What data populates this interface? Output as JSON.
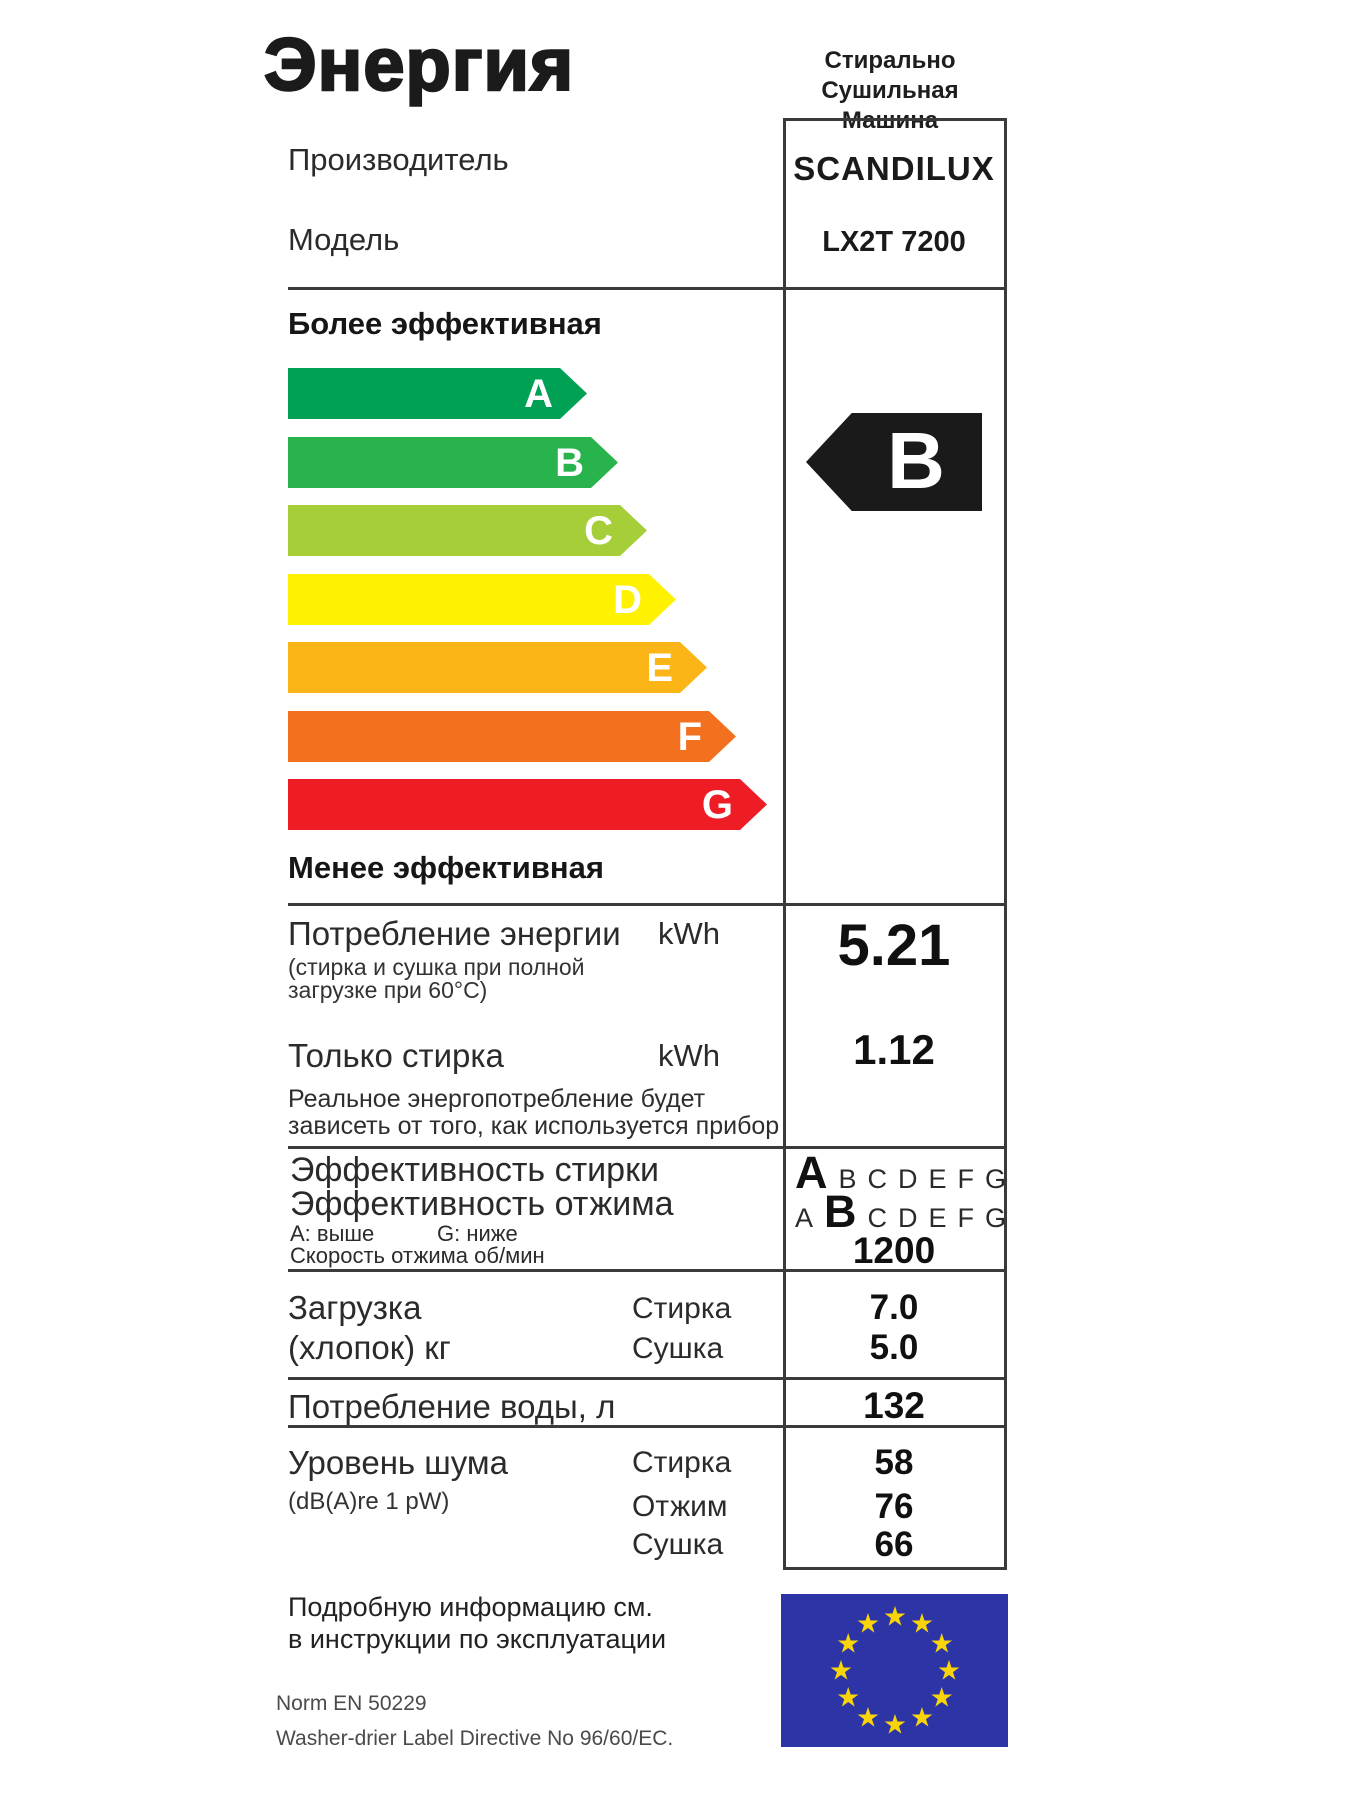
{
  "title": "Энергия",
  "appliance_type": {
    "line1": "Стирально",
    "line2": "Сушильная Машина"
  },
  "manufacturer": {
    "label": "Производитель",
    "value": "SCANDILUX"
  },
  "model": {
    "label": "Модель",
    "value": "LX2T 7200"
  },
  "scale": {
    "more_efficient": "Более эффективная",
    "less_efficient": "Менее эффективная",
    "grades": [
      {
        "letter": "A",
        "color": "#00a155"
      },
      {
        "letter": "B",
        "color": "#28b34d"
      },
      {
        "letter": "C",
        "color": "#a5ce39"
      },
      {
        "letter": "D",
        "color": "#fef200"
      },
      {
        "letter": "E",
        "color": "#fbb516"
      },
      {
        "letter": "F",
        "color": "#f3701e"
      },
      {
        "letter": "G",
        "color": "#ee1c25"
      }
    ]
  },
  "rating": {
    "value": "B",
    "color": "#1a1a1a"
  },
  "energy": {
    "label": "Потребление энергии",
    "unit": "kWh",
    "value": "5.21",
    "note_line1": "(стирка и сушка при полной",
    "note_line2": "загрузке при 60°С)",
    "wash_only_label": "Только стирка",
    "wash_only_unit": "kWh",
    "wash_only_value": "1.12",
    "disclaimer_line1": "Реальное энергопотребление будет",
    "disclaimer_line2": "зависеть от того, как используется прибор"
  },
  "efficiency": {
    "wash_label": "Эффективность стирки",
    "spin_label": "Эффективность отжима",
    "scale_note_a": "А:  выше",
    "scale_note_g": "G:  ниже",
    "spin_speed_label": "Скорость отжима об/мин",
    "letters": [
      "A",
      "B",
      "C",
      "D",
      "E",
      "F",
      "G"
    ],
    "wash_grade": "A",
    "spin_grade": "B",
    "spin_speed_value": "1200"
  },
  "load": {
    "label_line1": "Загрузка",
    "label_line2": "(хлопок) кг",
    "wash_label": "Стирка",
    "wash_value": "7.0",
    "dry_label": "Сушка",
    "dry_value": "5.0"
  },
  "water": {
    "label": "Потребление воды, л",
    "value": "132"
  },
  "noise": {
    "label": "Уровень шума",
    "unit_note": "(dB(A)re 1 pW)",
    "rows": [
      {
        "label": "Стирка",
        "value": "58"
      },
      {
        "label": "Отжим",
        "value": "76"
      },
      {
        "label": "Сушка",
        "value": "66"
      }
    ]
  },
  "footer": {
    "info_line1": "Подробную информацию см.",
    "info_line2": "в инструкции по эксплуатации",
    "norm": "Norm EN 50229",
    "directive": "Washer-drier Label Directive No 96/60/EC."
  },
  "eu_flag": {
    "background": "#2d35a6",
    "star_color": "#f8d408",
    "star_count": 12
  }
}
